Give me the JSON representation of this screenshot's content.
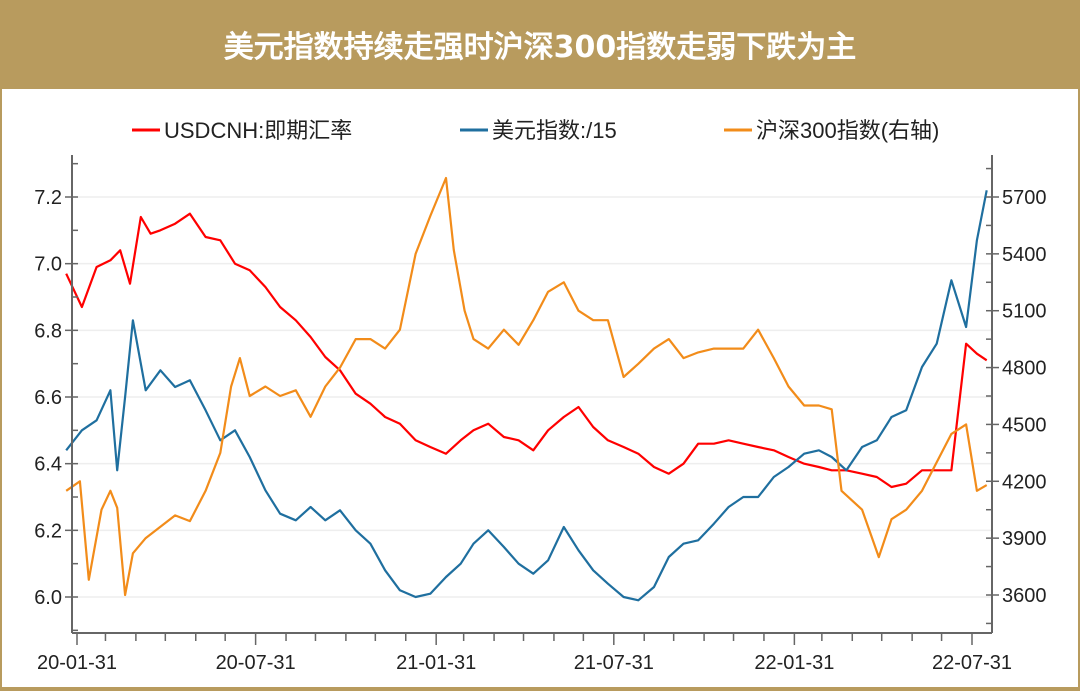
{
  "title": "美元指数持续走强时沪深300指数走弱下跌为主",
  "legend": [
    {
      "label": "USDCNH:即期汇率",
      "color": "#ff0000"
    },
    {
      "label": "美元指数:/15",
      "color": "#1f6f9f"
    },
    {
      "label": "沪深300指数(右轴)",
      "color": "#f28c1a"
    }
  ],
  "chart_data": {
    "type": "line",
    "title": "美元指数持续走强时沪深300指数走弱下跌为主",
    "xlabel": "",
    "ylabel": "",
    "ylabel_right": "",
    "x_range": [
      "2020-01-20",
      "2022-08-31"
    ],
    "x_ticks": [
      "20-01-31",
      "20-07-31",
      "21-01-31",
      "21-07-31",
      "22-01-31",
      "22-07-31"
    ],
    "y_left": {
      "min": 5.9,
      "max": 7.3,
      "ticks": [
        6.0,
        6.2,
        6.4,
        6.6,
        6.8,
        7.0,
        7.2
      ]
    },
    "y_left_tick_labels": [
      "6.0",
      "6.2",
      "6.4",
      "6.6",
      "6.8",
      "7.0",
      "7.2"
    ],
    "y_right": {
      "min": 3480,
      "max": 5900,
      "ticks": [
        3600,
        3900,
        4200,
        4500,
        4800,
        5100,
        5400,
        5700
      ]
    },
    "y_right_tick_labels": [
      "3600",
      "3900",
      "4200",
      "4500",
      "4800",
      "5100",
      "5400",
      "5700"
    ],
    "grid": "horizontal",
    "legend_position": "top",
    "series": [
      {
        "name": "USDCNH:即期汇率",
        "axis": "left",
        "color": "#ff0000",
        "x": [
          "2020-01-20",
          "2020-02-05",
          "2020-02-20",
          "2020-03-05",
          "2020-03-15",
          "2020-03-25",
          "2020-04-05",
          "2020-04-15",
          "2020-04-25",
          "2020-05-10",
          "2020-05-25",
          "2020-06-10",
          "2020-06-25",
          "2020-07-10",
          "2020-07-25",
          "2020-08-10",
          "2020-08-25",
          "2020-09-10",
          "2020-09-25",
          "2020-10-10",
          "2020-10-25",
          "2020-11-10",
          "2020-11-25",
          "2020-12-10",
          "2020-12-25",
          "2021-01-10",
          "2021-01-25",
          "2021-02-10",
          "2021-02-25",
          "2021-03-10",
          "2021-03-25",
          "2021-04-10",
          "2021-04-25",
          "2021-05-10",
          "2021-05-25",
          "2021-06-10",
          "2021-06-25",
          "2021-07-10",
          "2021-07-25",
          "2021-08-10",
          "2021-08-25",
          "2021-09-10",
          "2021-09-25",
          "2021-10-10",
          "2021-10-25",
          "2021-11-10",
          "2021-11-25",
          "2021-12-10",
          "2021-12-25",
          "2022-01-10",
          "2022-01-25",
          "2022-02-10",
          "2022-02-25",
          "2022-03-10",
          "2022-03-25",
          "2022-04-10",
          "2022-04-25",
          "2022-05-10",
          "2022-05-25",
          "2022-06-10",
          "2022-06-25",
          "2022-07-10",
          "2022-07-25",
          "2022-08-05",
          "2022-08-15"
        ],
        "values": [
          6.97,
          6.87,
          6.99,
          7.01,
          7.04,
          6.94,
          7.14,
          7.09,
          7.1,
          7.12,
          7.15,
          7.08,
          7.07,
          7.0,
          6.98,
          6.93,
          6.87,
          6.83,
          6.78,
          6.72,
          6.68,
          6.61,
          6.58,
          6.54,
          6.52,
          6.47,
          6.45,
          6.43,
          6.47,
          6.5,
          6.52,
          6.48,
          6.47,
          6.44,
          6.5,
          6.54,
          6.57,
          6.51,
          6.47,
          6.45,
          6.43,
          6.39,
          6.37,
          6.4,
          6.46,
          6.46,
          6.47,
          6.46,
          6.45,
          6.44,
          6.42,
          6.4,
          6.39,
          6.38,
          6.38,
          6.37,
          6.36,
          6.33,
          6.34,
          6.38,
          6.38,
          6.38,
          6.76,
          6.73,
          6.71
        ]
      },
      {
        "name": "美元指数:/15",
        "axis": "left",
        "color": "#1f6f9f",
        "x": [
          "2020-01-20",
          "2020-02-05",
          "2020-02-20",
          "2020-03-05",
          "2020-03-12",
          "2020-03-20",
          "2020-03-28",
          "2020-04-10",
          "2020-04-25",
          "2020-05-10",
          "2020-05-25",
          "2020-06-10",
          "2020-06-25",
          "2020-07-10",
          "2020-07-25",
          "2020-08-10",
          "2020-08-25",
          "2020-09-10",
          "2020-09-25",
          "2020-10-10",
          "2020-10-25",
          "2020-11-10",
          "2020-11-25",
          "2020-12-10",
          "2020-12-25",
          "2021-01-10",
          "2021-01-25",
          "2021-02-10",
          "2021-02-25",
          "2021-03-10",
          "2021-03-25",
          "2021-04-10",
          "2021-04-25",
          "2021-05-10",
          "2021-05-25",
          "2021-06-10",
          "2021-06-25",
          "2021-07-10",
          "2021-07-25",
          "2021-08-10",
          "2021-08-25",
          "2021-09-10",
          "2021-09-25",
          "2021-10-10",
          "2021-10-25",
          "2021-11-10",
          "2021-11-25",
          "2021-12-10",
          "2021-12-25",
          "2022-01-10",
          "2022-01-25",
          "2022-02-10",
          "2022-02-25",
          "2022-03-10",
          "2022-03-25",
          "2022-04-10",
          "2022-04-25",
          "2022-05-10",
          "2022-05-25",
          "2022-06-10",
          "2022-06-25",
          "2022-07-10",
          "2022-07-25",
          "2022-08-05",
          "2022-08-15"
        ],
        "values": [
          6.44,
          6.5,
          6.53,
          6.62,
          6.38,
          6.6,
          6.83,
          6.62,
          6.68,
          6.63,
          6.65,
          6.56,
          6.47,
          6.5,
          6.42,
          6.32,
          6.25,
          6.23,
          6.27,
          6.23,
          6.26,
          6.2,
          6.16,
          6.08,
          6.02,
          6.0,
          6.01,
          6.06,
          6.1,
          6.16,
          6.2,
          6.15,
          6.1,
          6.07,
          6.11,
          6.21,
          6.14,
          6.08,
          6.04,
          6.0,
          5.99,
          6.03,
          6.12,
          6.16,
          6.17,
          6.22,
          6.27,
          6.3,
          6.3,
          6.36,
          6.39,
          6.43,
          6.44,
          6.42,
          6.38,
          6.45,
          6.47,
          6.54,
          6.56,
          6.69,
          6.76,
          6.95,
          6.81,
          7.07,
          7.22
        ]
      },
      {
        "name": "沪深300指数(右轴)",
        "axis": "right",
        "color": "#f28c1a",
        "x": [
          "2020-01-20",
          "2020-02-03",
          "2020-02-12",
          "2020-02-25",
          "2020-03-05",
          "2020-03-12",
          "2020-03-20",
          "2020-03-28",
          "2020-04-10",
          "2020-04-25",
          "2020-05-10",
          "2020-05-25",
          "2020-06-10",
          "2020-06-25",
          "2020-07-06",
          "2020-07-15",
          "2020-07-25",
          "2020-08-10",
          "2020-08-25",
          "2020-09-10",
          "2020-09-25",
          "2020-10-10",
          "2020-10-25",
          "2020-11-10",
          "2020-11-25",
          "2020-12-10",
          "2020-12-25",
          "2021-01-10",
          "2021-01-25",
          "2021-02-10",
          "2021-02-18",
          "2021-03-01",
          "2021-03-10",
          "2021-03-25",
          "2021-04-10",
          "2021-04-25",
          "2021-05-10",
          "2021-05-25",
          "2021-06-10",
          "2021-06-25",
          "2021-07-10",
          "2021-07-25",
          "2021-08-10",
          "2021-08-25",
          "2021-09-10",
          "2021-09-25",
          "2021-10-10",
          "2021-10-25",
          "2021-11-10",
          "2021-11-25",
          "2021-12-10",
          "2021-12-25",
          "2022-01-10",
          "2022-01-25",
          "2022-02-10",
          "2022-02-25",
          "2022-03-10",
          "2022-03-20",
          "2022-04-10",
          "2022-04-27",
          "2022-05-10",
          "2022-05-25",
          "2022-06-10",
          "2022-06-25",
          "2022-07-10",
          "2022-07-25",
          "2022-08-05",
          "2022-08-15"
        ],
        "values": [
          4150,
          4200,
          3680,
          4050,
          4150,
          4060,
          3600,
          3820,
          3900,
          3960,
          4020,
          3990,
          4150,
          4350,
          4700,
          4850,
          4650,
          4700,
          4650,
          4680,
          4540,
          4700,
          4800,
          4950,
          4950,
          4900,
          5000,
          5400,
          5600,
          5800,
          5420,
          5100,
          4950,
          4900,
          5000,
          4920,
          5050,
          5200,
          5250,
          5100,
          5050,
          5050,
          4750,
          4820,
          4900,
          4950,
          4850,
          4880,
          4900,
          4900,
          4900,
          5000,
          4850,
          4700,
          4600,
          4600,
          4580,
          4150,
          4050,
          3800,
          4000,
          4050,
          4150,
          4300,
          4450,
          4500,
          4150,
          4180
        ]
      }
    ]
  }
}
